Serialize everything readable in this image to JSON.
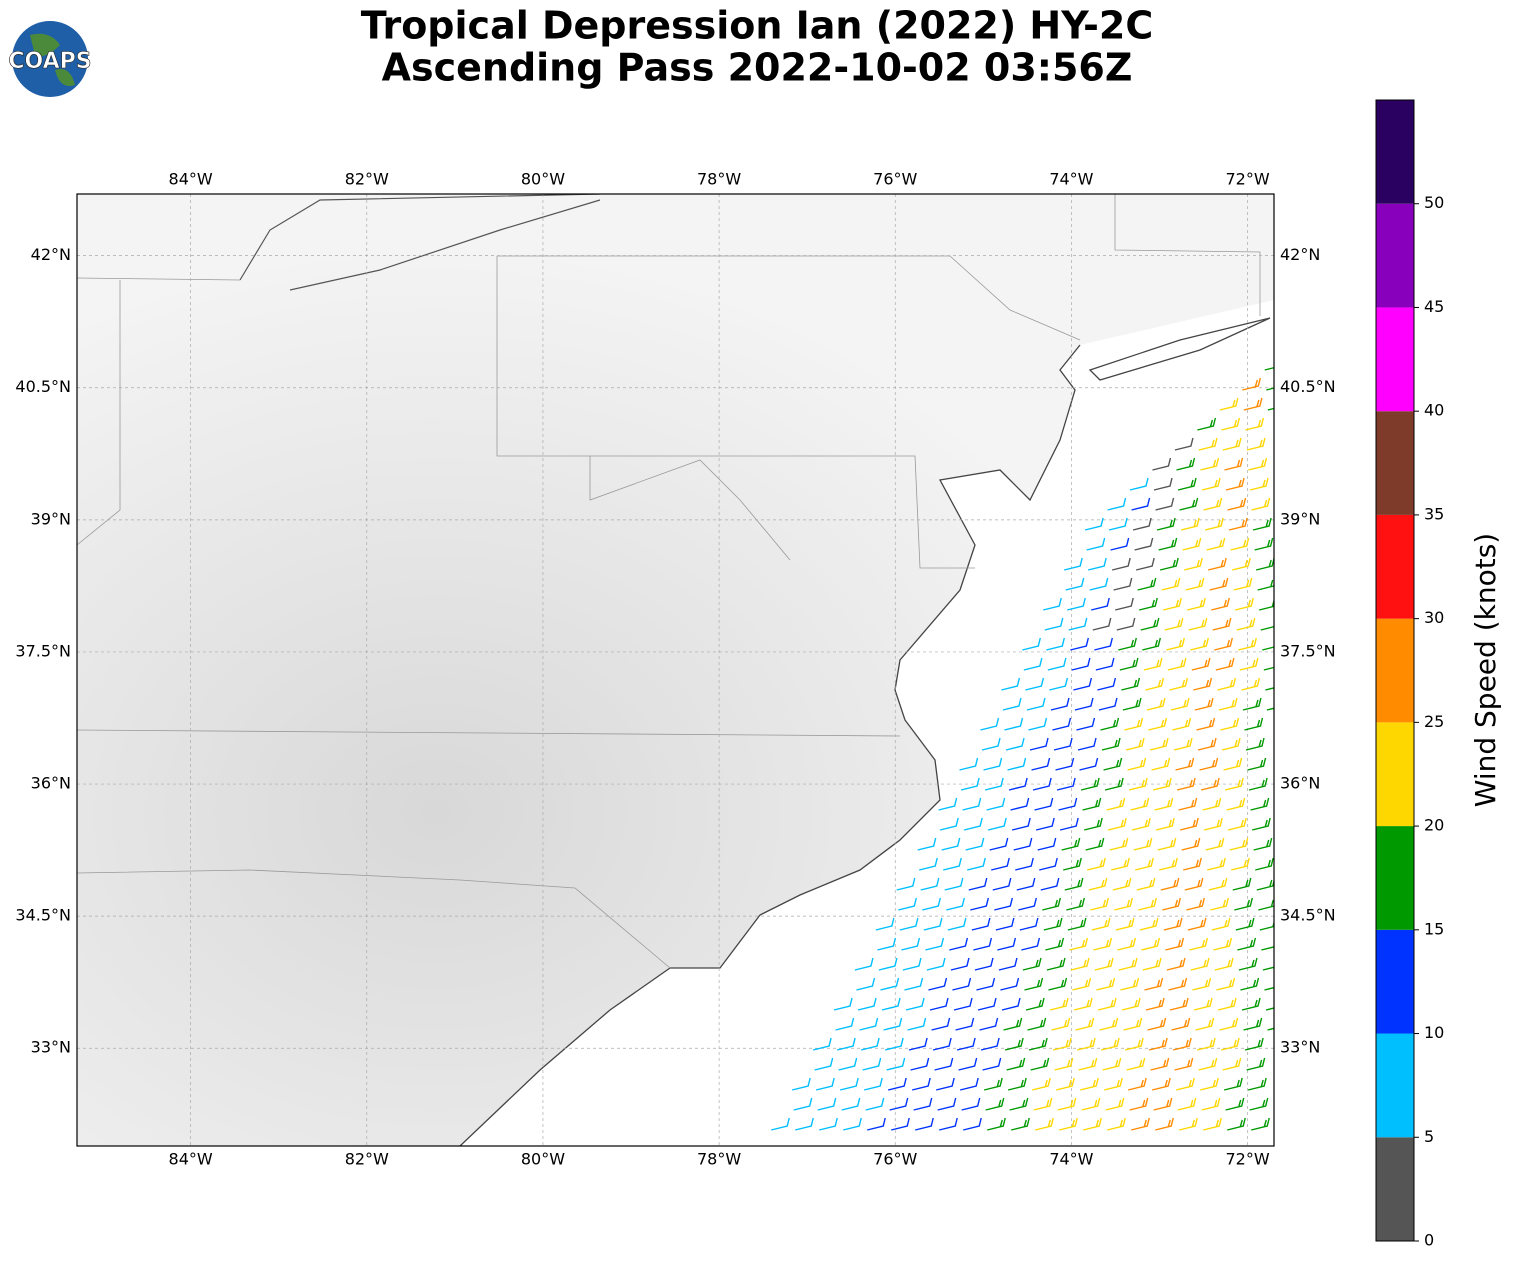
{
  "chart_data": {
    "type": "barbs",
    "title": [
      "Tropical Depression Ian (2022) HY-2C",
      "Ascending Pass 2022-10-02 03:56Z"
    ],
    "logo": "COAPS",
    "xlim": [
      -85.29,
      -71.7
    ],
    "ylim": [
      31.89,
      42.7
    ],
    "xticks": [
      {
        "value": -84,
        "label": "84°W"
      },
      {
        "value": -82,
        "label": "82°W"
      },
      {
        "value": -80,
        "label": "80°W"
      },
      {
        "value": -78,
        "label": "78°W"
      },
      {
        "value": -76,
        "label": "76°W"
      },
      {
        "value": -74,
        "label": "74°W"
      },
      {
        "value": -72,
        "label": "72°W"
      }
    ],
    "yticks": [
      {
        "value": 33,
        "label": "33°N"
      },
      {
        "value": 34.5,
        "label": "34.5°N"
      },
      {
        "value": 36,
        "label": "36°N"
      },
      {
        "value": 37.5,
        "label": "37.5°N"
      },
      {
        "value": 39,
        "label": "39°N"
      },
      {
        "value": 40.5,
        "label": "40.5°N"
      },
      {
        "value": 42,
        "label": "42°N"
      }
    ],
    "grid": true,
    "colorbar": {
      "label": "Wind Speed (knots)",
      "lim": [
        0,
        55
      ],
      "bins": [
        0,
        5,
        10,
        15,
        20,
        25,
        30,
        35,
        40,
        45,
        50,
        55
      ],
      "colors": [
        "#555555",
        "#00bfff",
        "#0033ff",
        "#009900",
        "#ffd700",
        "#ff8c00",
        "#ff1111",
        "#7f3b2a",
        "#ff00ff",
        "#8800bb",
        "#2a0060"
      ],
      "ticks": [
        0,
        5,
        10,
        15,
        20,
        25,
        30,
        35,
        40,
        45,
        50
      ]
    }
  }
}
